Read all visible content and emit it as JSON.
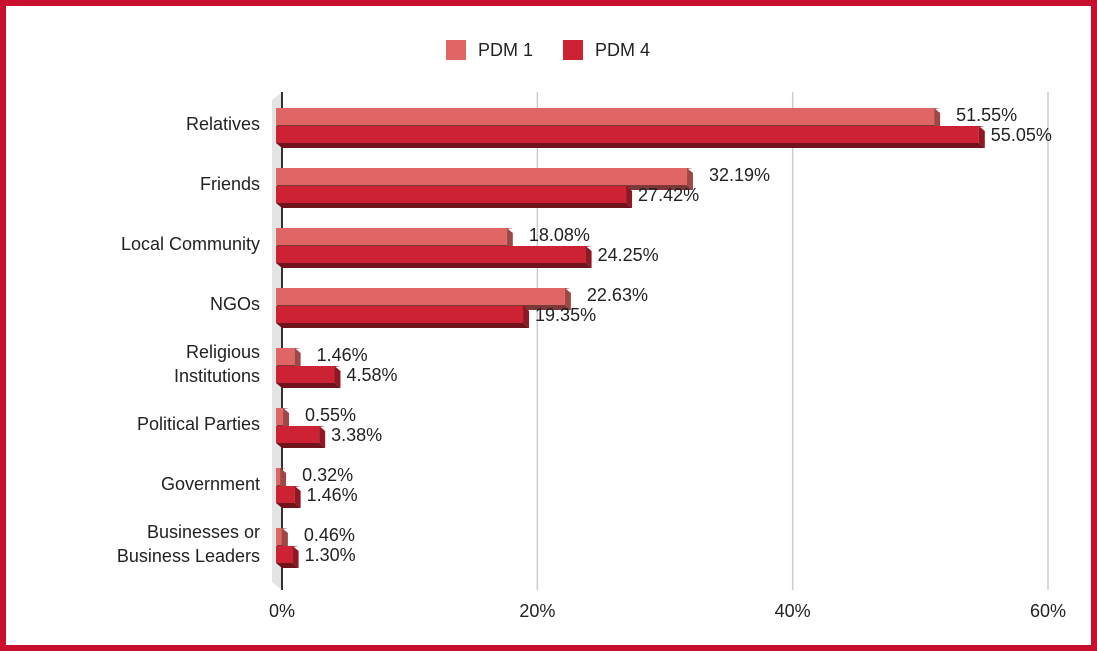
{
  "chart_data": {
    "type": "bar",
    "orientation": "horizontal",
    "categories": [
      "Relatives",
      "Friends",
      "Local Community",
      "NGOs",
      "Religious Institutions",
      "Political Parties",
      "Government",
      "Businesses or Business Leaders"
    ],
    "series": [
      {
        "name": "PDM 1",
        "color": "#e06666",
        "values": [
          51.55,
          32.19,
          18.08,
          22.63,
          1.46,
          0.55,
          0.32,
          0.46
        ],
        "value_labels": [
          "51.55%",
          "32.19%",
          "18.08%",
          "22.63%",
          "1.46%",
          "0.55%",
          "0.32%",
          "0.46%"
        ]
      },
      {
        "name": "PDM 4",
        "color": "#cc2233",
        "values": [
          55.05,
          27.42,
          24.25,
          19.35,
          4.58,
          3.38,
          1.46,
          1.3
        ],
        "value_labels": [
          "55.05%",
          "27.42%",
          "24.25%",
          "19.35%",
          "4.58%",
          "3.38%",
          "1.46%",
          "1.30%"
        ]
      }
    ],
    "xlim": [
      0,
      60
    ],
    "xticks": [
      {
        "value": 0,
        "label": "0%"
      },
      {
        "value": 20,
        "label": "20%"
      },
      {
        "value": 40,
        "label": "40%"
      },
      {
        "value": 60,
        "label": "60%"
      }
    ],
    "grid": true,
    "legend": "top"
  }
}
